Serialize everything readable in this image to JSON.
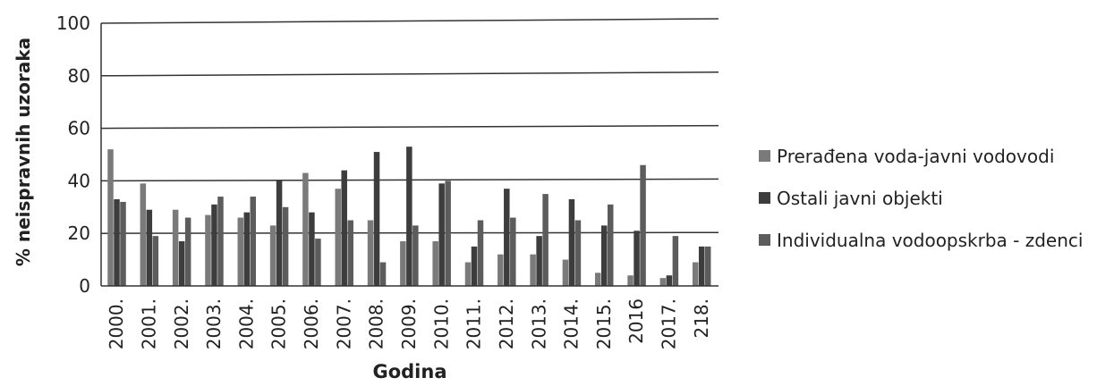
{
  "chart_data": {
    "type": "bar",
    "xlabel": "Godina",
    "ylabel": "% neispravnih uzoraka",
    "ylim": [
      0,
      100
    ],
    "yticks": [
      "0",
      "20",
      "40",
      "60",
      "80",
      "100"
    ],
    "grid": true,
    "legend_position": "right",
    "categories": [
      "2000.",
      "2001.",
      "2002.",
      "2003.",
      "2004.",
      "2005.",
      "2006.",
      "2007.",
      "2008.",
      "2009.",
      "2010.",
      "2011.",
      "2012.",
      "2013.",
      "2014.",
      "2015.",
      "2016",
      "2017.",
      "218."
    ],
    "series": [
      {
        "name": "Prerađena voda-javni vodovodi",
        "color": "#7a7a7a",
        "values": [
          52,
          39,
          29,
          27,
          26,
          23,
          43,
          37,
          25,
          17,
          17,
          9,
          12,
          12,
          10,
          5,
          4,
          3,
          9
        ]
      },
      {
        "name": "Ostali javni objekti",
        "color": "#3d3d3d",
        "values": [
          33,
          29,
          17,
          31,
          28,
          40,
          28,
          44,
          51,
          53,
          39,
          15,
          37,
          19,
          33,
          23,
          21,
          4,
          15
        ]
      },
      {
        "name": "Individualna vodoopskrba - zdenci",
        "color": "#5c5c5c",
        "values": [
          32,
          19,
          26,
          34,
          34,
          30,
          18,
          25,
          9,
          23,
          40,
          25,
          26,
          35,
          25,
          31,
          46,
          19,
          15
        ]
      }
    ]
  }
}
